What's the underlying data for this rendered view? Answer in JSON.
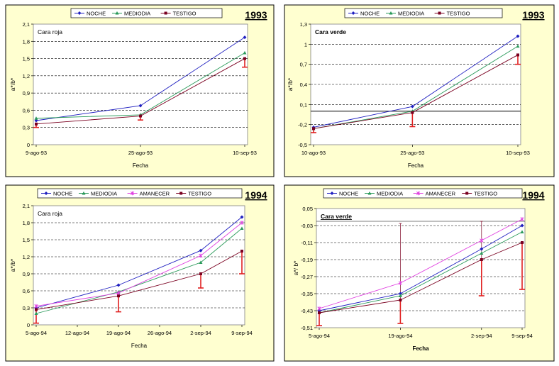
{
  "colors": {
    "frame_bg": "#FFFFD0",
    "noche": "#1F1FC0",
    "mediodia": "#2A9A5A",
    "amanecer": "#E040E0",
    "testigo": "#7A0020",
    "errorbar": "#E02020"
  },
  "chart_data": [
    {
      "type": "line",
      "year_label": "1993",
      "subtitle": "Cara roja",
      "xlabel": "Fecha",
      "ylabel": "a*/b*",
      "categories": [
        "9-ago-93",
        "25-ago-93",
        "10-sep-93"
      ],
      "x": [
        0,
        16,
        32
      ],
      "ylim": [
        0,
        2.1
      ],
      "yticks": [
        0,
        0.3,
        0.6,
        0.9,
        1.2,
        1.5,
        1.8,
        2.1
      ],
      "ytick_labels": [
        "0",
        "0,3",
        "0,6",
        "0,9",
        "1,2",
        "1,5",
        "1,8",
        "2,1"
      ],
      "legend": "top",
      "grid": true,
      "series": [
        {
          "name": "NOCHE",
          "values": [
            0.42,
            0.68,
            1.87
          ]
        },
        {
          "name": "MEDIODIA",
          "values": [
            0.46,
            0.52,
            1.6
          ]
        },
        {
          "name": "TESTIGO",
          "values": [
            0.36,
            0.5,
            1.5
          ],
          "error_low": [
            0.3,
            0.43,
            1.35
          ]
        }
      ]
    },
    {
      "type": "line",
      "year_label": "1993",
      "subtitle": "Cara verde",
      "xlabel": "Fecha",
      "ylabel": "a*/b*",
      "categories": [
        "10-ago-93",
        "25-ago-93",
        "10-sep-93"
      ],
      "x": [
        0,
        15,
        31
      ],
      "ylim": [
        -0.5,
        1.3
      ],
      "yticks": [
        -0.5,
        -0.2,
        0.1,
        0.4,
        0.7,
        1,
        1.3
      ],
      "ytick_labels": [
        "-0,5",
        "-0,2",
        "0,1",
        "0,4",
        "0,7",
        "1",
        "1,3"
      ],
      "legend": "top",
      "grid": true,
      "series": [
        {
          "name": "NOCHE",
          "values": [
            -0.24,
            0.07,
            1.12
          ]
        },
        {
          "name": "MEDIODIA",
          "values": [
            -0.26,
            0.0,
            0.97
          ]
        },
        {
          "name": "TESTIGO",
          "values": [
            -0.26,
            -0.02,
            0.84
          ],
          "error_low": [
            -0.32,
            -0.23,
            0.7
          ]
        }
      ]
    },
    {
      "type": "line",
      "year_label": "1994",
      "subtitle": "Cara roja",
      "xlabel": "Fecha",
      "ylabel": "a*/b*",
      "categories": [
        "5-ago-94",
        "12-ago-94",
        "19-ago-94",
        "26-ago-94",
        "2-sep-94",
        "9-sep-94"
      ],
      "x": [
        0,
        14,
        28,
        35
      ],
      "xticks": [
        0,
        7,
        14,
        21,
        28,
        35
      ],
      "ylim": [
        0,
        2.1
      ],
      "yticks": [
        0,
        0.3,
        0.6,
        0.9,
        1.2,
        1.5,
        1.8,
        2.1
      ],
      "ytick_labels": [
        "0",
        "0,3",
        "0,6",
        "0,9",
        "1,2",
        "1,5",
        "1,8",
        "2,1"
      ],
      "legend": "top",
      "grid": true,
      "series": [
        {
          "name": "NOCHE",
          "values": [
            0.3,
            0.7,
            1.31,
            1.9
          ]
        },
        {
          "name": "MEDIODIA",
          "values": [
            0.2,
            0.58,
            1.1,
            1.7
          ]
        },
        {
          "name": "AMANECER",
          "values": [
            0.33,
            0.56,
            1.22,
            1.8
          ]
        },
        {
          "name": "TESTIGO",
          "values": [
            0.27,
            0.51,
            0.9,
            1.3
          ],
          "error_low": [
            0.03,
            0.23,
            0.65,
            0.9
          ]
        }
      ]
    },
    {
      "type": "line",
      "year_label": "1994",
      "subtitle": "Cara verde",
      "xlabel": "Fecha",
      "ylabel": "a*/ b*",
      "categories": [
        "5-ago-94",
        "19-ago-94",
        "2-sep-94",
        "9-sep-94"
      ],
      "x": [
        0,
        14,
        28,
        35
      ],
      "ylim": [
        -0.51,
        0.05
      ],
      "yticks": [
        -0.51,
        -0.43,
        -0.35,
        -0.27,
        -0.19,
        -0.11,
        -0.03,
        0.05
      ],
      "ytick_labels": [
        "-0,51",
        "-0,43",
        "-0,35",
        "-0,27",
        "-0,19",
        "-0,11",
        "-0,03",
        "0,05"
      ],
      "legend": "top",
      "grid": true,
      "series": [
        {
          "name": "NOCHE",
          "values": [
            -0.43,
            -0.35,
            -0.14,
            -0.03
          ]
        },
        {
          "name": "MEDIODIA",
          "values": [
            -0.44,
            -0.36,
            -0.16,
            -0.06
          ]
        },
        {
          "name": "AMANECER",
          "values": [
            -0.42,
            -0.3,
            -0.1,
            0.0
          ]
        },
        {
          "name": "TESTIGO",
          "values": [
            -0.44,
            -0.38,
            -0.19,
            -0.11
          ],
          "error_low": [
            -0.5,
            -0.49,
            -0.36,
            -0.33
          ],
          "error_high": [
            null,
            -0.02,
            -0.01,
            null
          ]
        }
      ]
    }
  ]
}
